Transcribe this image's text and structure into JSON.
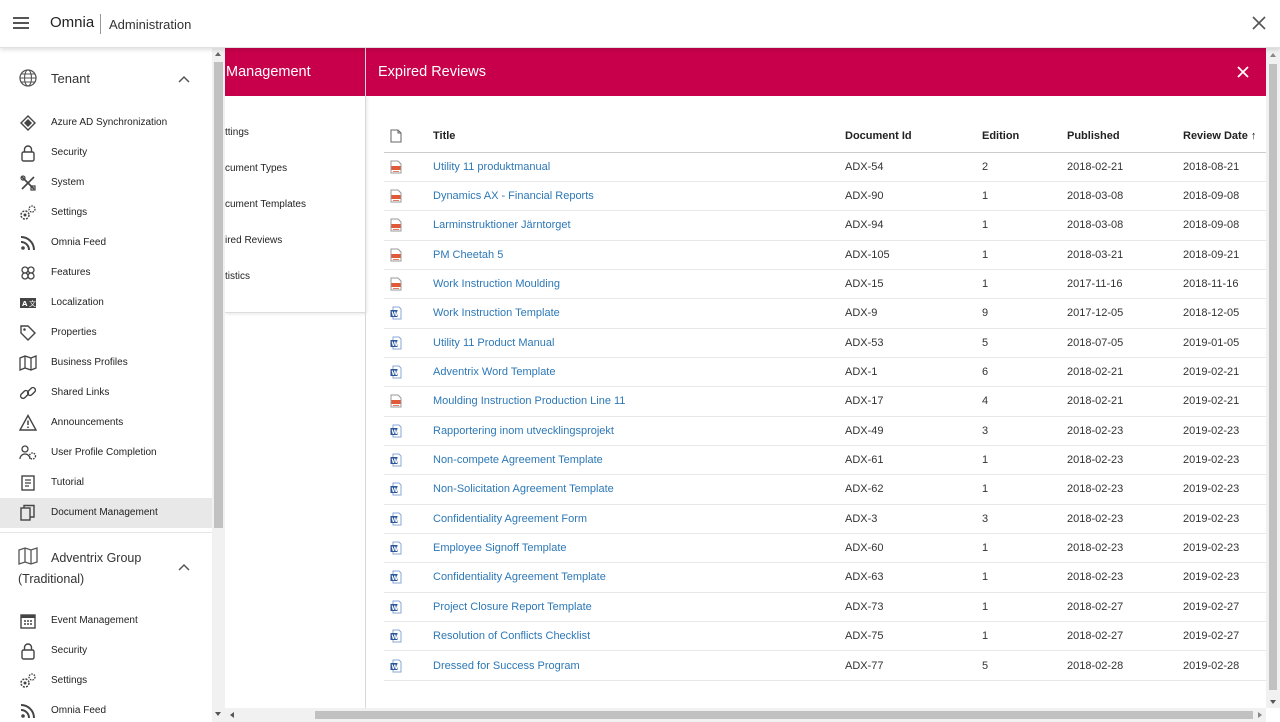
{
  "topbar": {
    "app_name": "Omnia",
    "section": "Administration"
  },
  "sidebar": {
    "tenant_group": {
      "title": "Tenant",
      "items": [
        {
          "label": "Azure AD Synchronization",
          "icon": "azure-icon"
        },
        {
          "label": "Security",
          "icon": "lock-icon"
        },
        {
          "label": "System",
          "icon": "tools-icon"
        },
        {
          "label": "Settings",
          "icon": "gears-icon"
        },
        {
          "label": "Omnia Feed",
          "icon": "rss-icon"
        },
        {
          "label": "Features",
          "icon": "puzzle-icon"
        },
        {
          "label": "Localization",
          "icon": "translate-icon"
        },
        {
          "label": "Properties",
          "icon": "tag-icon"
        },
        {
          "label": "Business Profiles",
          "icon": "map-icon"
        },
        {
          "label": "Shared Links",
          "icon": "link-icon"
        },
        {
          "label": "Announcements",
          "icon": "warning-icon"
        },
        {
          "label": "User Profile Completion",
          "icon": "user-gear-icon"
        },
        {
          "label": "Tutorial",
          "icon": "book-icon"
        },
        {
          "label": "Document Management",
          "icon": "copy-icon"
        }
      ]
    },
    "adventrix_group": {
      "title": "Adventrix Group (Traditional)",
      "items": [
        {
          "label": "Event Management",
          "icon": "calendar-icon"
        },
        {
          "label": "Security",
          "icon": "lock-icon"
        },
        {
          "label": "Settings",
          "icon": "gears-icon"
        },
        {
          "label": "Omnia Feed",
          "icon": "rss-icon"
        }
      ]
    }
  },
  "doc_mgmt": {
    "title": "Management",
    "items": [
      "ttings",
      "cument Types",
      "cument Templates",
      "ired Reviews",
      "tistics"
    ]
  },
  "expired_reviews": {
    "title": "Expired Reviews",
    "columns": {
      "title": "Title",
      "doc_id": "Document Id",
      "edition": "Edition",
      "published": "Published",
      "review_date": "Review Date",
      "sort_arrow": "↑"
    },
    "rows": [
      {
        "type": "pdf",
        "title": "Utility 11 produktmanual",
        "doc_id": "ADX-54",
        "edition": "2",
        "published": "2018-02-21",
        "review_date": "2018-08-21"
      },
      {
        "type": "pdf",
        "title": "Dynamics AX - Financial Reports",
        "doc_id": "ADX-90",
        "edition": "1",
        "published": "2018-03-08",
        "review_date": "2018-09-08"
      },
      {
        "type": "pdf",
        "title": "Larminstruktioner Järntorget",
        "doc_id": "ADX-94",
        "edition": "1",
        "published": "2018-03-08",
        "review_date": "2018-09-08"
      },
      {
        "type": "pdf",
        "title": "PM Cheetah 5",
        "doc_id": "ADX-105",
        "edition": "1",
        "published": "2018-03-21",
        "review_date": "2018-09-21"
      },
      {
        "type": "pdf",
        "title": "Work Instruction Moulding",
        "doc_id": "ADX-15",
        "edition": "1",
        "published": "2017-11-16",
        "review_date": "2018-11-16"
      },
      {
        "type": "word",
        "title": "Work Instruction Template",
        "doc_id": "ADX-9",
        "edition": "9",
        "published": "2017-12-05",
        "review_date": "2018-12-05"
      },
      {
        "type": "word",
        "title": "Utility 11 Product Manual",
        "doc_id": "ADX-53",
        "edition": "5",
        "published": "2018-07-05",
        "review_date": "2019-01-05"
      },
      {
        "type": "word",
        "title": "Adventrix Word Template",
        "doc_id": "ADX-1",
        "edition": "6",
        "published": "2018-02-21",
        "review_date": "2019-02-21"
      },
      {
        "type": "pdf",
        "title": "Moulding Instruction Production Line 11",
        "doc_id": "ADX-17",
        "edition": "4",
        "published": "2018-02-21",
        "review_date": "2019-02-21"
      },
      {
        "type": "word",
        "title": "Rapportering inom utvecklingsprojekt",
        "doc_id": "ADX-49",
        "edition": "3",
        "published": "2018-02-23",
        "review_date": "2019-02-23"
      },
      {
        "type": "word",
        "title": "Non-compete Agreement Template",
        "doc_id": "ADX-61",
        "edition": "1",
        "published": "2018-02-23",
        "review_date": "2019-02-23"
      },
      {
        "type": "word",
        "title": "Non-Solicitation Agreement Template",
        "doc_id": "ADX-62",
        "edition": "1",
        "published": "2018-02-23",
        "review_date": "2019-02-23"
      },
      {
        "type": "word",
        "title": "Confidentiality Agreement Form",
        "doc_id": "ADX-3",
        "edition": "3",
        "published": "2018-02-23",
        "review_date": "2019-02-23"
      },
      {
        "type": "word",
        "title": "Employee Signoff Template",
        "doc_id": "ADX-60",
        "edition": "1",
        "published": "2018-02-23",
        "review_date": "2019-02-23"
      },
      {
        "type": "word",
        "title": "Confidentiality Agreement Template",
        "doc_id": "ADX-63",
        "edition": "1",
        "published": "2018-02-23",
        "review_date": "2019-02-23"
      },
      {
        "type": "word",
        "title": "Project Closure Report Template",
        "doc_id": "ADX-73",
        "edition": "1",
        "published": "2018-02-27",
        "review_date": "2019-02-27"
      },
      {
        "type": "word",
        "title": "Resolution of Conflicts Checklist",
        "doc_id": "ADX-75",
        "edition": "1",
        "published": "2018-02-27",
        "review_date": "2019-02-27"
      },
      {
        "type": "word",
        "title": "Dressed for Success Program",
        "doc_id": "ADX-77",
        "edition": "5",
        "published": "2018-02-28",
        "review_date": "2019-02-28"
      }
    ]
  },
  "colors": {
    "accent": "#c8004b",
    "link": "#2d78b6"
  }
}
